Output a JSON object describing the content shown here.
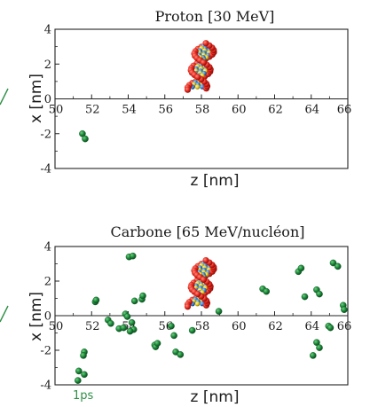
{
  "chart_data": [
    {
      "type": "scatter",
      "title": "Proton [30 MeV]",
      "xlabel": "z [nm]",
      "ylabel": "x [nm]",
      "xlim": [
        50,
        66
      ],
      "ylim": [
        -4,
        4
      ],
      "x_ticks": [
        "50",
        "52",
        "54",
        "56",
        "58",
        "60",
        "62",
        "64",
        "66"
      ],
      "y_ticks": [
        "4",
        "2",
        "0",
        "-2",
        "-4"
      ],
      "grid": false,
      "points_color": "#1e8a3c",
      "points": [
        {
          "x": 51.5,
          "y": -2.0
        },
        {
          "x": 51.65,
          "y": -2.3
        }
      ],
      "dna_molecule": {
        "z": 58.0,
        "x": 1.9
      }
    },
    {
      "type": "scatter",
      "title": "Carbone [65 MeV/nucléon]",
      "xlabel": "z [nm]",
      "ylabel": "x [nm]",
      "xlim": [
        50,
        66
      ],
      "ylim": [
        -4,
        4
      ],
      "x_ticks": [
        "50",
        "52",
        "54",
        "56",
        "58",
        "60",
        "62",
        "64",
        "66"
      ],
      "y_ticks": [
        "4",
        "2",
        "0",
        "-2",
        "-4"
      ],
      "grid": false,
      "annotation": "1ps",
      "annotation_color": "#2f8f46",
      "points_color": "#1e8a3c",
      "points": [
        {
          "x": 51.3,
          "y": -3.2
        },
        {
          "x": 51.6,
          "y": -3.4
        },
        {
          "x": 51.25,
          "y": -3.75
        },
        {
          "x": 51.6,
          "y": -2.1
        },
        {
          "x": 51.55,
          "y": -2.3
        },
        {
          "x": 52.2,
          "y": 0.8
        },
        {
          "x": 52.25,
          "y": 0.9
        },
        {
          "x": 52.9,
          "y": -0.25
        },
        {
          "x": 53.05,
          "y": -0.45
        },
        {
          "x": 53.5,
          "y": -0.75
        },
        {
          "x": 53.75,
          "y": -0.7
        },
        {
          "x": 53.85,
          "y": 0.1
        },
        {
          "x": 53.95,
          "y": -0.05
        },
        {
          "x": 54.05,
          "y": 3.4
        },
        {
          "x": 54.25,
          "y": 3.45
        },
        {
          "x": 54.2,
          "y": -0.4
        },
        {
          "x": 54.3,
          "y": -0.8
        },
        {
          "x": 54.1,
          "y": -0.9
        },
        {
          "x": 54.35,
          "y": 0.85
        },
        {
          "x": 54.75,
          "y": 0.95
        },
        {
          "x": 54.8,
          "y": 1.15
        },
        {
          "x": 55.45,
          "y": -1.7
        },
        {
          "x": 55.5,
          "y": -1.8
        },
        {
          "x": 55.6,
          "y": -1.6
        },
        {
          "x": 56.35,
          "y": -0.6
        },
        {
          "x": 56.5,
          "y": -1.15
        },
        {
          "x": 56.6,
          "y": -2.1
        },
        {
          "x": 56.85,
          "y": -2.25
        },
        {
          "x": 57.5,
          "y": -0.85
        },
        {
          "x": 58.95,
          "y": 0.25
        },
        {
          "x": 61.35,
          "y": 1.55
        },
        {
          "x": 61.55,
          "y": 1.4
        },
        {
          "x": 63.3,
          "y": 2.55
        },
        {
          "x": 63.45,
          "y": 2.75
        },
        {
          "x": 63.65,
          "y": 1.1
        },
        {
          "x": 64.1,
          "y": -2.3
        },
        {
          "x": 64.3,
          "y": -1.55
        },
        {
          "x": 64.45,
          "y": -1.85
        },
        {
          "x": 64.3,
          "y": 1.5
        },
        {
          "x": 64.45,
          "y": 1.25
        },
        {
          "x": 64.95,
          "y": -0.6
        },
        {
          "x": 65.05,
          "y": -0.7
        },
        {
          "x": 65.2,
          "y": 3.05
        },
        {
          "x": 65.45,
          "y": 2.85
        },
        {
          "x": 65.75,
          "y": 0.6
        },
        {
          "x": 65.8,
          "y": 0.35
        }
      ],
      "dna_molecule": {
        "z": 58.0,
        "x": 1.9
      }
    }
  ]
}
